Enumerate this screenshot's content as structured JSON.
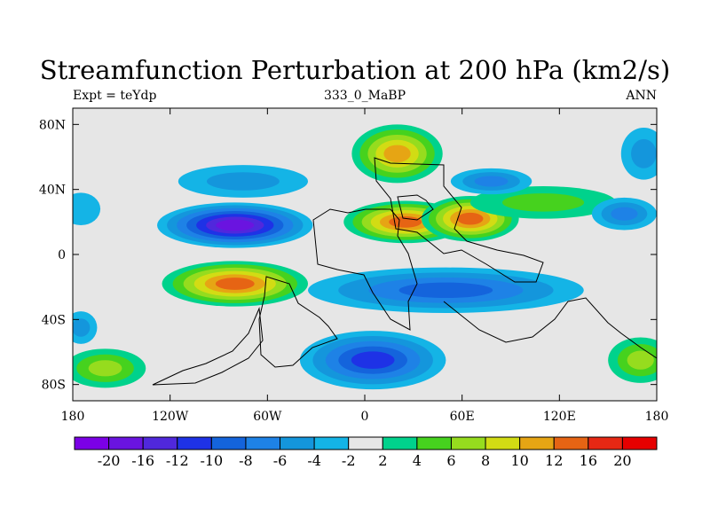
{
  "chart_data": {
    "type": "contour-map",
    "title": "Streamfunction Perturbation at 200 hPa (km2/s)",
    "left_label": "Expt = teYdp",
    "center_label": "333_0_MaBP",
    "right_label": "ANN",
    "x_ticks": [
      "180",
      "120W",
      "60W",
      "0",
      "60E",
      "120E",
      "180"
    ],
    "x_range": [
      -180,
      180
    ],
    "y_ticks": [
      "80N",
      "40N",
      "0",
      "40S",
      "80S"
    ],
    "y_range": [
      -90,
      90
    ],
    "colorbar": {
      "labels": [
        "-20",
        "-16",
        "-12",
        "-10",
        "-8",
        "-6",
        "-4",
        "-2",
        "2",
        "4",
        "6",
        "8",
        "10",
        "12",
        "16",
        "20"
      ],
      "colors": [
        "#7b00e6",
        "#6a14e0",
        "#5028dc",
        "#1e32e6",
        "#1464dc",
        "#1e82e6",
        "#1496dc",
        "#14b4e6",
        "#e6e6e6",
        "#00d28c",
        "#46d21e",
        "#96dc1e",
        "#d2dc14",
        "#e6a514",
        "#e66414",
        "#e62814",
        "#e60000"
      ]
    },
    "blobs": [
      {
        "lon": -80,
        "lat": 18,
        "level": -16,
        "rlon": 48,
        "rlat": 14
      },
      {
        "lon": -75,
        "lat": 45,
        "level": -4,
        "rlon": 40,
        "rlat": 10
      },
      {
        "lon": -175,
        "lat": 28,
        "level": -2,
        "rlon": 12,
        "rlat": 10
      },
      {
        "lon": -80,
        "lat": -18,
        "level": 16,
        "rlon": 45,
        "rlat": 14
      },
      {
        "lon": -175,
        "lat": -45,
        "level": -4,
        "rlon": 10,
        "rlat": 10
      },
      {
        "lon": -160,
        "lat": -70,
        "level": 8,
        "rlon": 25,
        "rlat": 12
      },
      {
        "lon": 20,
        "lat": 62,
        "level": 12,
        "rlon": 28,
        "rlat": 18
      },
      {
        "lon": 25,
        "lat": 20,
        "level": 16,
        "rlon": 38,
        "rlat": 13
      },
      {
        "lon": 65,
        "lat": 22,
        "level": 16,
        "rlon": 30,
        "rlat": 14
      },
      {
        "lon": 110,
        "lat": 32,
        "level": 6,
        "rlon": 45,
        "rlat": 10
      },
      {
        "lon": 78,
        "lat": 45,
        "level": -6,
        "rlon": 25,
        "rlat": 8
      },
      {
        "lon": 160,
        "lat": 25,
        "level": -6,
        "rlon": 20,
        "rlat": 10
      },
      {
        "lon": 172,
        "lat": 62,
        "level": -4,
        "rlon": 14,
        "rlat": 16
      },
      {
        "lon": 50,
        "lat": -22,
        "level": -8,
        "rlon": 85,
        "rlat": 14
      },
      {
        "lon": 5,
        "lat": -65,
        "level": -10,
        "rlon": 45,
        "rlat": 18
      },
      {
        "lon": 170,
        "lat": -65,
        "level": 8,
        "rlon": 20,
        "rlat": 14
      }
    ]
  }
}
